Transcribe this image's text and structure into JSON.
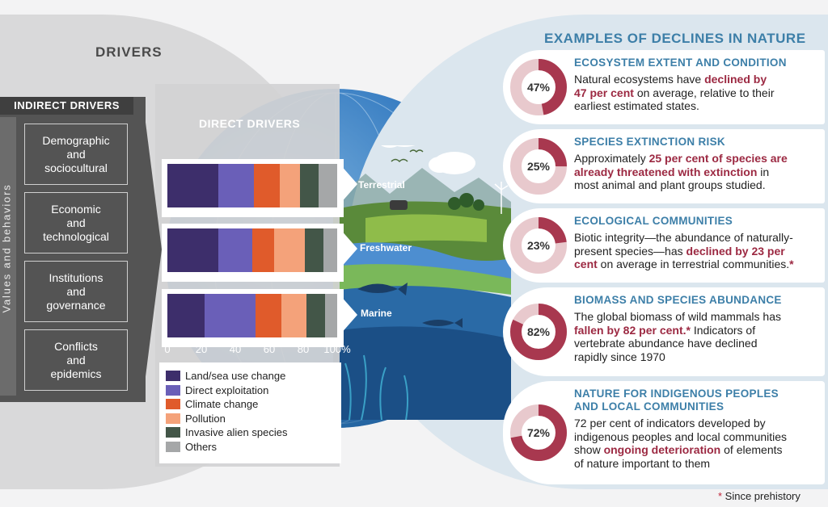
{
  "left": {
    "title": "DRIVERS",
    "indirect_header": "INDIRECT DRIVERS",
    "values_label": "Values and behaviors",
    "indirect_drivers": [
      [
        "Demographic",
        "and",
        "sociocultural"
      ],
      [
        "Economic",
        "and",
        "technological"
      ],
      [
        "Institutions",
        "and",
        "governance"
      ],
      [
        "Conflicts",
        "and",
        "epidemics"
      ]
    ],
    "direct_title": "DIRECT DRIVERS"
  },
  "chart_data": {
    "type": "bar",
    "orientation": "horizontal",
    "stacked": true,
    "title": "DIRECT DRIVERS",
    "categories": [
      "Terrestrial",
      "Freshwater",
      "Marine"
    ],
    "series": [
      {
        "name": "Land/sea use change",
        "color": "#3d2e6b",
        "values": [
          30,
          30,
          22
        ]
      },
      {
        "name": "Direct exploitation",
        "color": "#6a5fb8",
        "values": [
          21,
          20,
          30
        ]
      },
      {
        "name": "Climate change",
        "color": "#e05b2b",
        "values": [
          15,
          13,
          15
        ]
      },
      {
        "name": "Pollution",
        "color": "#f4a27a",
        "values": [
          12,
          18,
          15
        ]
      },
      {
        "name": "Invasive alien species",
        "color": "#435648",
        "values": [
          11,
          11,
          11
        ]
      },
      {
        "name": "Others",
        "color": "#a5a7a8",
        "values": [
          11,
          8,
          7
        ]
      }
    ],
    "xlim": [
      0,
      100
    ],
    "x_ticks": [
      "0",
      "20",
      "40",
      "60",
      "80",
      "100%"
    ],
    "legend_placement": "bottom"
  },
  "right": {
    "title": "EXAMPLES OF DECLINES IN NATURE",
    "cards": [
      {
        "title": [
          "ECOSYSTEM EXTENT AND CONDITION"
        ],
        "percent": 47,
        "label": "47%",
        "body": [
          [
            {
              "t": "Natural ecosystems have "
            },
            {
              "t": "declined by",
              "h": true
            }
          ],
          [
            {
              "t": "47 per cent",
              "h": true
            },
            {
              "t": " on average, relative to their"
            }
          ],
          [
            {
              "t": "earliest estimated states."
            }
          ]
        ]
      },
      {
        "title": [
          "SPECIES EXTINCTION RISK"
        ],
        "percent": 25,
        "label": "25%",
        "body": [
          [
            {
              "t": "Approximately "
            },
            {
              "t": "25 per cent of species are",
              "h": true
            }
          ],
          [
            {
              "t": "already threatened with extinction",
              "h": true
            },
            {
              "t": " in"
            }
          ],
          [
            {
              "t": "most animal and plant groups studied."
            }
          ]
        ]
      },
      {
        "title": [
          "ECOLOGICAL COMMUNITIES"
        ],
        "percent": 23,
        "label": "23%",
        "body": [
          [
            {
              "t": "Biotic integrity—the abundance of naturally-"
            }
          ],
          [
            {
              "t": "present species—has "
            },
            {
              "t": "declined by 23 per",
              "h": true
            }
          ],
          [
            {
              "t": "cent",
              "h": true
            },
            {
              "t": " on average in terrestrial communities."
            },
            {
              "t": "*",
              "h": true
            }
          ]
        ]
      },
      {
        "title": [
          "BIOMASS AND SPECIES ABUNDANCE"
        ],
        "percent": 82,
        "label": "82%",
        "body": [
          [
            {
              "t": "The global biomass of wild mammals has"
            }
          ],
          [
            {
              "t": "fallen by 82 per cent.",
              "h": true
            },
            {
              "t": "*",
              "h": true
            },
            {
              "t": " Indicators of"
            }
          ],
          [
            {
              "t": "vertebrate abundance have declined"
            }
          ],
          [
            {
              "t": "rapidly since 1970"
            }
          ]
        ]
      },
      {
        "title": [
          "NATURE FOR INDIGENOUS PEOPLES",
          "AND LOCAL COMMUNITIES"
        ],
        "percent": 72,
        "label": "72%",
        "body": [
          [
            {
              "t": "72 per cent of indicators developed by"
            }
          ],
          [
            {
              "t": "indigenous peoples and local communities"
            }
          ],
          [
            {
              "t": "show "
            },
            {
              "t": "ongoing deterioration",
              "h": true
            },
            {
              "t": " of elements"
            }
          ],
          [
            {
              "t": "of nature important to them"
            }
          ]
        ]
      }
    ]
  },
  "footnote": {
    "star": "*",
    "text": " Since prehistory"
  },
  "colors": {
    "accent_blue": "#3d7fa8",
    "highlight": "#9c2942",
    "donut_full": "#a8384f",
    "donut_track": "#e8c9cd"
  }
}
